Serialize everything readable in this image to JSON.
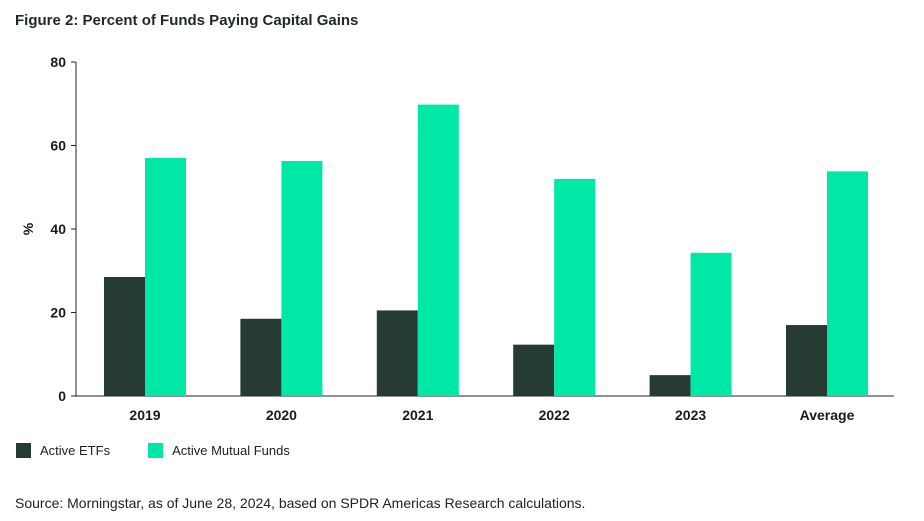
{
  "chart_data": {
    "type": "bar",
    "title": "Figure 2: Percent of Funds Paying Capital Gains",
    "xlabel": "",
    "ylabel": "%",
    "ylim": [
      0,
      80
    ],
    "yticks": [
      0,
      20,
      40,
      60,
      80
    ],
    "grid": false,
    "legend_position": "bottom-left",
    "categories": [
      "2019",
      "2020",
      "2021",
      "2022",
      "2023",
      "Average"
    ],
    "series": [
      {
        "name": "Active ETFs",
        "color": "#263b31",
        "values": [
          28.5,
          18.5,
          20.5,
          12.3,
          5.0,
          17.0
        ]
      },
      {
        "name": "Active Mutual Funds",
        "color": "#00e8a6",
        "values": [
          57.0,
          56.3,
          69.8,
          52.0,
          34.3,
          53.8
        ]
      }
    ]
  },
  "source": "Source: Morningstar, as of June 28, 2024, based on SPDR Americas Research calculations."
}
